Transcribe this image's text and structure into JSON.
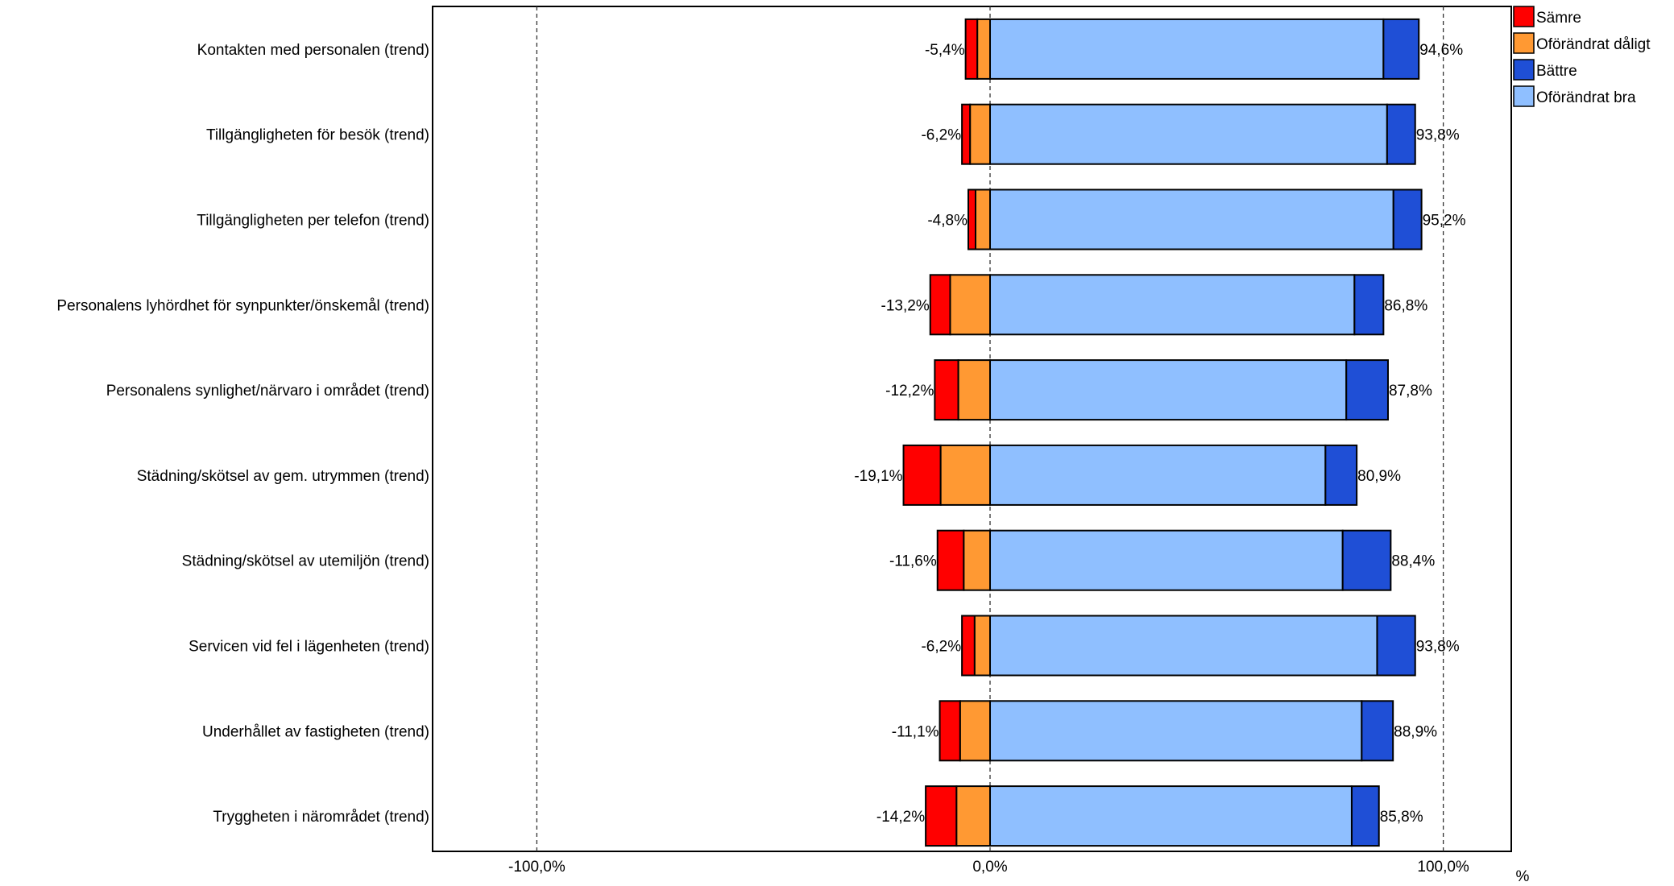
{
  "chart_data": {
    "type": "bar",
    "orientation": "horizontal",
    "stacked": "diverging",
    "categories": [
      "Kontakten med personalen (trend)",
      "Tillgängligheten för besök (trend)",
      "Tillgängligheten per telefon (trend)",
      "Personalens lyhördhet för synpunkter/önskemål (trend)",
      "Personalens synlighet/närvaro i området (trend)",
      "Städning/skötsel av gem. utrymmen (trend)",
      "Städning/skötsel av utemiljön (trend)",
      "Servicen vid fel i lägenheten (trend)",
      "Underhållet av fastigheten (trend)",
      "Tryggheten i närområdet (trend)"
    ],
    "series": [
      {
        "name": "Sämre",
        "color": "#ff0000",
        "side": "negative",
        "values": [
          2.6,
          1.8,
          1.6,
          4.4,
          5.2,
          8.2,
          5.8,
          2.8,
          4.5,
          6.8
        ]
      },
      {
        "name": "Oförändrat dåligt",
        "color": "#ff9933",
        "side": "negative",
        "values": [
          2.8,
          4.4,
          3.2,
          8.8,
          7.0,
          10.9,
          5.8,
          3.4,
          6.6,
          7.4
        ]
      },
      {
        "name": "Oförändrat bra",
        "color": "#8fbfff",
        "side": "positive",
        "values": [
          86.8,
          87.6,
          89.0,
          80.4,
          78.6,
          74.0,
          77.8,
          85.4,
          82.0,
          79.8
        ]
      },
      {
        "name": "Bättre",
        "color": "#1f4fd6",
        "side": "positive",
        "values": [
          7.8,
          6.2,
          6.2,
          6.4,
          9.2,
          6.9,
          10.6,
          8.4,
          6.9,
          6.0
        ]
      }
    ],
    "totals_negative": [
      "-5,4%",
      "-6,2%",
      "-4,8%",
      "-13,2%",
      "-12,2%",
      "-19,1%",
      "-11,6%",
      "-6,2%",
      "-11,1%",
      "-14,2%"
    ],
    "totals_positive": [
      "94,6%",
      "93,8%",
      "95,2%",
      "86,8%",
      "87,8%",
      "80,9%",
      "88,4%",
      "93,8%",
      "88,9%",
      "85,8%"
    ],
    "legend": [
      {
        "name": "Sämre",
        "color": "#ff0000"
      },
      {
        "name": "Oförändrat dåligt",
        "color": "#ff9933"
      },
      {
        "name": "Bättre",
        "color": "#1f4fd6"
      },
      {
        "name": "Oförändrat bra",
        "color": "#8fbfff"
      }
    ],
    "legend_position": "top-right",
    "xlim": [
      -123,
      115
    ],
    "xticks": [
      -100,
      0,
      100
    ],
    "xtick_labels": [
      "-100,0%",
      "0,0%",
      "100,0%"
    ],
    "xlabel": "%",
    "gridlines": "dashed vertical at -100, 0, 100"
  }
}
